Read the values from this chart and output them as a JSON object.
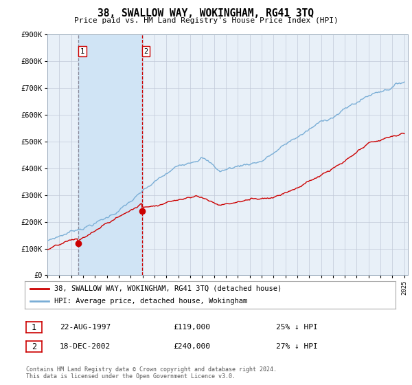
{
  "title": "38, SWALLOW WAY, WOKINGHAM, RG41 3TQ",
  "subtitle": "Price paid vs. HM Land Registry's House Price Index (HPI)",
  "ylim": [
    0,
    900000
  ],
  "yticks": [
    0,
    100000,
    200000,
    300000,
    400000,
    500000,
    600000,
    700000,
    800000,
    900000
  ],
  "ytick_labels": [
    "£0",
    "£100K",
    "£200K",
    "£300K",
    "£400K",
    "£500K",
    "£600K",
    "£700K",
    "£800K",
    "£900K"
  ],
  "x_start_year": 1995,
  "x_end_year": 2025,
  "hpi_color": "#7aaed6",
  "price_color": "#cc0000",
  "bg_color": "#ffffff",
  "plot_bg_color": "#e8f0f8",
  "grid_color": "#c0c8d8",
  "sale1_year": 1997.622,
  "sale1_price": 119000,
  "sale1_date": "22-AUG-1997",
  "sale1_hpi_pct": "25% ↓ HPI",
  "sale2_year": 2002.962,
  "sale2_price": 240000,
  "sale2_date": "18-DEC-2002",
  "sale2_hpi_pct": "27% ↓ HPI",
  "legend_label_red": "38, SWALLOW WAY, WOKINGHAM, RG41 3TQ (detached house)",
  "legend_label_blue": "HPI: Average price, detached house, Wokingham",
  "footnote1": "Contains HM Land Registry data © Crown copyright and database right 2024.",
  "footnote2": "This data is licensed under the Open Government Licence v3.0.",
  "shaded_color": "#d0e4f5"
}
